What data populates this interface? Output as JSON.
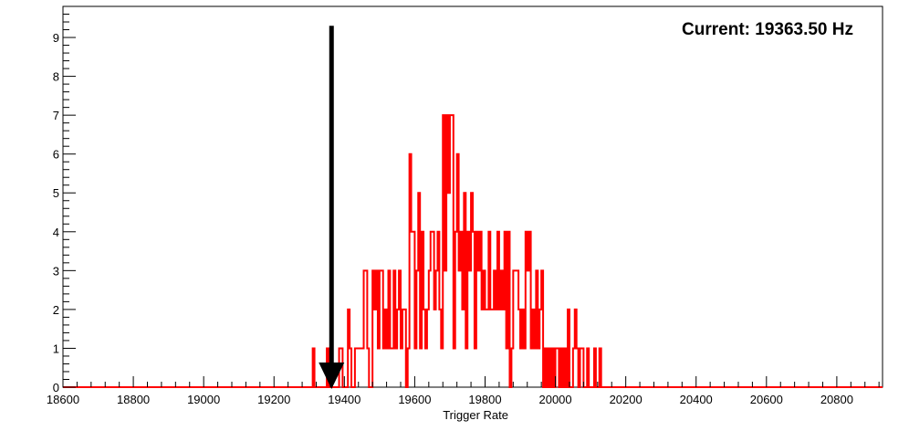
{
  "chart_data": {
    "type": "histogram",
    "title": "",
    "xlabel": "Trigger Rate",
    "ylabel": "",
    "xlim": [
      18600,
      20930
    ],
    "ylim": [
      0,
      9.8
    ],
    "grid": false,
    "annotation": {
      "text": "Current: 19363.50 Hz",
      "arrow_x": 19363.5,
      "arrow_y_top": 9.3,
      "arrow_y_bottom": 0
    },
    "line_color": "#ff0000",
    "bin_width": 5,
    "x_tick_labels": [
      "18600",
      "18800",
      "19000",
      "19200",
      "19400",
      "19600",
      "19800",
      "20000",
      "20200",
      "20400",
      "20600",
      "20800"
    ],
    "y_tick_labels": [
      "0",
      "1",
      "2",
      "3",
      "4",
      "5",
      "6",
      "7",
      "8",
      "9"
    ],
    "bins": [
      [
        19310,
        1
      ],
      [
        19315,
        0
      ],
      [
        19350,
        1
      ],
      [
        19355,
        0
      ],
      [
        19360,
        1
      ],
      [
        19365,
        0
      ],
      [
        19375,
        0
      ],
      [
        19385,
        1
      ],
      [
        19390,
        1
      ],
      [
        19395,
        0
      ],
      [
        19405,
        0
      ],
      [
        19410,
        2
      ],
      [
        19415,
        1
      ],
      [
        19420,
        0
      ],
      [
        19430,
        1
      ],
      [
        19435,
        1
      ],
      [
        19445,
        1
      ],
      [
        19450,
        1
      ],
      [
        19455,
        3
      ],
      [
        19460,
        3
      ],
      [
        19465,
        1
      ],
      [
        19470,
        0
      ],
      [
        19480,
        3
      ],
      [
        19485,
        2
      ],
      [
        19490,
        3
      ],
      [
        19495,
        1
      ],
      [
        19500,
        3
      ],
      [
        19505,
        3
      ],
      [
        19510,
        1
      ],
      [
        19515,
        2
      ],
      [
        19520,
        1
      ],
      [
        19525,
        3
      ],
      [
        19530,
        1
      ],
      [
        19535,
        1
      ],
      [
        19540,
        3
      ],
      [
        19545,
        1
      ],
      [
        19550,
        2
      ],
      [
        19555,
        3
      ],
      [
        19560,
        1
      ],
      [
        19565,
        2
      ],
      [
        19570,
        2
      ],
      [
        19575,
        0
      ],
      [
        19580,
        1
      ],
      [
        19585,
        6
      ],
      [
        19590,
        4
      ],
      [
        19595,
        4
      ],
      [
        19600,
        1
      ],
      [
        19605,
        3
      ],
      [
        19610,
        5
      ],
      [
        19615,
        1
      ],
      [
        19620,
        4
      ],
      [
        19625,
        2
      ],
      [
        19630,
        1
      ],
      [
        19635,
        2
      ],
      [
        19640,
        3
      ],
      [
        19645,
        4
      ],
      [
        19650,
        4
      ],
      [
        19655,
        2
      ],
      [
        19660,
        3
      ],
      [
        19665,
        4
      ],
      [
        19670,
        2
      ],
      [
        19675,
        1
      ],
      [
        19680,
        7
      ],
      [
        19685,
        3
      ],
      [
        19690,
        7
      ],
      [
        19695,
        5
      ],
      [
        19700,
        7
      ],
      [
        19705,
        7
      ],
      [
        19710,
        1
      ],
      [
        19715,
        4
      ],
      [
        19720,
        6
      ],
      [
        19725,
        3
      ],
      [
        19730,
        4
      ],
      [
        19735,
        2
      ],
      [
        19740,
        5
      ],
      [
        19745,
        1
      ],
      [
        19750,
        4
      ],
      [
        19755,
        3
      ],
      [
        19760,
        5
      ],
      [
        19765,
        4
      ],
      [
        19770,
        1
      ],
      [
        19775,
        4
      ],
      [
        19780,
        3
      ],
      [
        19785,
        4
      ],
      [
        19790,
        2
      ],
      [
        19795,
        3
      ],
      [
        19800,
        2
      ],
      [
        19805,
        2
      ],
      [
        19810,
        4
      ],
      [
        19815,
        2
      ],
      [
        19820,
        2
      ],
      [
        19825,
        3
      ],
      [
        19830,
        2
      ],
      [
        19835,
        4
      ],
      [
        19840,
        2
      ],
      [
        19845,
        3
      ],
      [
        19850,
        2
      ],
      [
        19855,
        4
      ],
      [
        19860,
        1
      ],
      [
        19865,
        4
      ],
      [
        19870,
        0
      ],
      [
        19875,
        1
      ],
      [
        19880,
        3
      ],
      [
        19885,
        3
      ],
      [
        19890,
        3
      ],
      [
        19895,
        2
      ],
      [
        19900,
        1
      ],
      [
        19905,
        2
      ],
      [
        19910,
        1
      ],
      [
        19915,
        4
      ],
      [
        19920,
        3
      ],
      [
        19925,
        4
      ],
      [
        19930,
        1
      ],
      [
        19935,
        2
      ],
      [
        19940,
        1
      ],
      [
        19945,
        3
      ],
      [
        19950,
        1
      ],
      [
        19955,
        2
      ],
      [
        19960,
        3
      ],
      [
        19965,
        0
      ],
      [
        19970,
        1
      ],
      [
        19975,
        0
      ],
      [
        19980,
        1
      ],
      [
        19985,
        0
      ],
      [
        19990,
        1
      ],
      [
        19995,
        0
      ],
      [
        20000,
        1
      ],
      [
        20005,
        1
      ],
      [
        20010,
        0
      ],
      [
        20015,
        1
      ],
      [
        20020,
        0
      ],
      [
        20025,
        1
      ],
      [
        20030,
        0
      ],
      [
        20035,
        2
      ],
      [
        20040,
        0
      ],
      [
        20050,
        1
      ],
      [
        20055,
        2
      ],
      [
        20060,
        1
      ],
      [
        20065,
        0
      ],
      [
        20070,
        1
      ],
      [
        20075,
        1
      ],
      [
        20080,
        0
      ],
      [
        20090,
        1
      ],
      [
        20095,
        0
      ],
      [
        20110,
        1
      ],
      [
        20115,
        0
      ],
      [
        20125,
        1
      ],
      [
        20130,
        0
      ]
    ]
  }
}
